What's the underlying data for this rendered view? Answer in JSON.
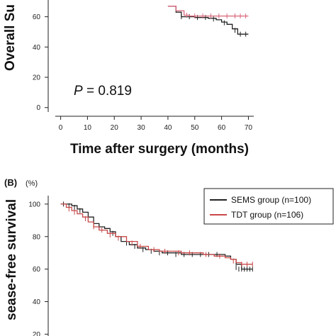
{
  "chart_data": [
    {
      "type": "line",
      "panel": "",
      "title": "",
      "ylabel": "Overall Su",
      "xlabel": "Time after surgery (months)",
      "annotation": {
        "p_symbol": "P",
        "p_value": "= 0.819"
      },
      "xlim": [
        -2,
        72
      ],
      "ylim": [
        -2,
        72
      ],
      "x_ticks": [
        0,
        10,
        20,
        30,
        40,
        50,
        60,
        70
      ],
      "y_ticks": [
        0,
        20,
        40,
        60
      ],
      "series": [
        {
          "color": "#222222",
          "x": [
            40,
            43,
            45,
            47,
            50,
            52,
            55,
            58,
            60,
            62,
            64,
            66,
            68,
            70
          ],
          "y": [
            67,
            63,
            60,
            60,
            59.5,
            59.5,
            59,
            58,
            56.5,
            55,
            52,
            48.5,
            48.5,
            48.5
          ],
          "censored": [
            [
              45,
              60
            ],
            [
              48,
              60
            ],
            [
              51,
              59.5
            ],
            [
              54,
              59.5
            ],
            [
              57,
              58.5
            ],
            [
              61,
              56
            ],
            [
              65,
              51
            ],
            [
              67,
              48.5
            ],
            [
              69,
              48.5
            ]
          ]
        },
        {
          "color": "#d9657a",
          "x": [
            40,
            43,
            46,
            48,
            50,
            55,
            60,
            65,
            70
          ],
          "y": [
            67,
            64,
            61,
            60.5,
            60.5,
            60.5,
            60.5,
            60.5,
            60.5
          ],
          "censored": [
            [
              47,
              61
            ],
            [
              50,
              60.5
            ],
            [
              53,
              60.5
            ],
            [
              56,
              60.5
            ],
            [
              59,
              60.5
            ],
            [
              62,
              60.5
            ],
            [
              65,
              60.5
            ],
            [
              67,
              60.5
            ],
            [
              69,
              60.5
            ]
          ]
        }
      ]
    },
    {
      "type": "line",
      "panel": "(B)",
      "unit": "(%)",
      "title": "",
      "ylabel": "sease-free survival",
      "xlabel": "",
      "xlim": [
        -2,
        72
      ],
      "ylim": [
        18,
        103
      ],
      "y_ticks": [
        20,
        40,
        60,
        80,
        100
      ],
      "legend": {
        "position": "top-right"
      },
      "series": [
        {
          "name": "SEMS group (n=100)",
          "color": "#222222",
          "x": [
            0,
            2,
            4,
            6,
            8,
            10,
            12,
            14,
            16,
            18,
            20,
            22,
            25,
            28,
            31,
            34,
            37,
            40,
            44,
            48,
            52,
            56,
            60,
            62,
            64,
            66,
            70
          ],
          "y": [
            100,
            100,
            99,
            97,
            95,
            92,
            88,
            86,
            85,
            83,
            80,
            77,
            75,
            73,
            72,
            71,
            70,
            70,
            69,
            69,
            69,
            69,
            68,
            66,
            63,
            60,
            60
          ],
          "censored": [
            [
              1,
              100
            ],
            [
              3,
              99
            ],
            [
              5,
              98
            ],
            [
              7,
              96
            ],
            [
              10,
              91
            ],
            [
              14,
              86
            ],
            [
              19,
              82
            ],
            [
              24,
              76
            ],
            [
              27,
              74
            ],
            [
              30,
              72
            ],
            [
              33,
              71
            ],
            [
              36,
              70
            ],
            [
              39,
              70
            ],
            [
              42,
              69
            ],
            [
              45,
              69
            ],
            [
              48,
              69
            ],
            [
              51,
              69
            ],
            [
              54,
              69
            ],
            [
              57,
              69
            ],
            [
              64,
              61
            ],
            [
              65,
              60
            ],
            [
              66,
              60
            ],
            [
              67,
              60
            ],
            [
              68,
              60
            ],
            [
              69,
              60
            ],
            [
              70,
              60
            ]
          ]
        },
        {
          "name": "TDT group (n=106)",
          "color": "#c94848",
          "x": [
            0,
            2,
            4,
            6,
            8,
            10,
            12,
            14,
            17,
            20,
            24,
            28,
            32,
            36,
            40,
            44,
            48,
            52,
            56,
            60,
            62,
            64,
            66,
            70
          ],
          "y": [
            100,
            98,
            96,
            94,
            92,
            89,
            86,
            84,
            82,
            80,
            77,
            74,
            72,
            71,
            71,
            70,
            70,
            69,
            68,
            67,
            66,
            64,
            63,
            63
          ],
          "censored": [
            [
              3,
              97
            ],
            [
              5,
              95
            ],
            [
              9,
              91
            ],
            [
              12,
              86
            ],
            [
              15,
              84
            ],
            [
              18,
              81
            ],
            [
              21,
              79
            ],
            [
              26,
              76
            ],
            [
              29,
              74
            ],
            [
              34,
              72
            ],
            [
              38,
              71
            ],
            [
              43,
              70
            ],
            [
              47,
              70
            ],
            [
              53,
              69
            ],
            [
              58,
              68
            ],
            [
              63,
              65
            ],
            [
              66,
              63
            ],
            [
              68,
              63
            ],
            [
              70,
              63
            ]
          ]
        }
      ]
    }
  ]
}
